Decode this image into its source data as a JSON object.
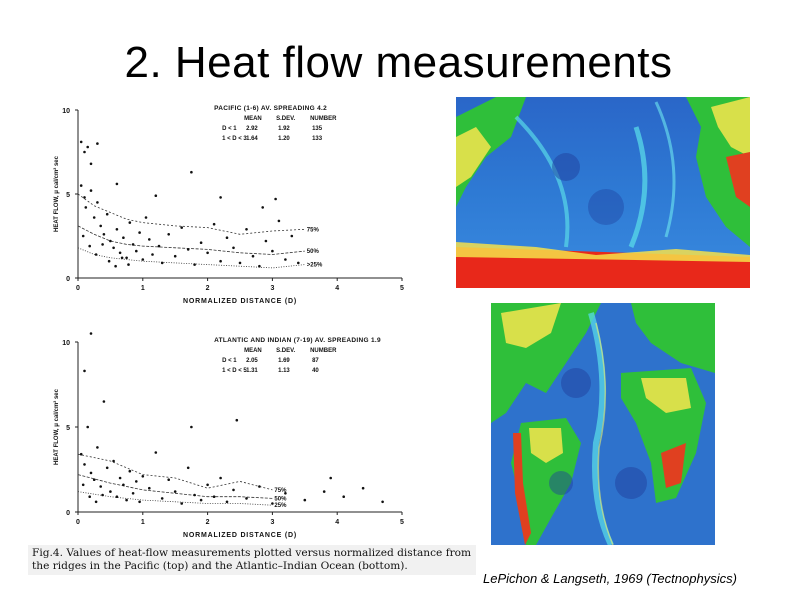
{
  "slide": {
    "title": "2. Heat flow measurements",
    "credit": "LePichon & Langseth, 1969 (Tectnophysics)",
    "caption": "Fig.4. Values of heat-flow measurements plotted versus normalized distance from the ridges in the Pacific (top) and the Atlantic–Indian Ocean (bottom)."
  },
  "colors": {
    "ocean_deep": "#1f3f9e",
    "ocean_mid": "#2f7fd0",
    "shelf": "#3ad7e8",
    "land_low": "#2fbf3a",
    "land_mid": "#d8e04a",
    "land_high": "#e04020",
    "ice": "#e8281a"
  },
  "icons": {
    "pacific_map": "bathymetry-map-pacific",
    "atlantic_map": "bathymetry-map-atlantic"
  },
  "chart_data": [
    {
      "type": "scatter",
      "title": "PACIFIC (1-6) AV. SPREADING 4.2",
      "xlabel": "NORMALIZED DISTANCE (D)",
      "ylabel": "HEAT FLOW, μ cal/cm² sec",
      "xlim": [
        0,
        5
      ],
      "ylim": [
        0,
        10
      ],
      "xticks": [
        "0",
        "1",
        "2",
        "3",
        "4",
        "5"
      ],
      "yticks": [
        "0",
        "5",
        "10"
      ],
      "stats": {
        "headers": [
          "MEAN",
          "S.DEV.",
          "NUMBER"
        ],
        "rows": [
          {
            "label": "D < 1",
            "values": [
              "2.92",
              "1.92",
              "135"
            ]
          },
          {
            "label": "1 < D < 3",
            "values": [
              "1.64",
              "1.20",
              "133"
            ]
          }
        ]
      },
      "curve_labels": [
        "75%",
        "50%",
        ">25%"
      ],
      "curves": [
        {
          "label": "75%",
          "x": [
            0,
            0.25,
            0.5,
            0.75,
            1,
            1.5,
            2,
            2.5,
            3,
            3.5
          ],
          "y": [
            5.0,
            4.3,
            3.9,
            3.5,
            3.3,
            3.1,
            3.0,
            2.6,
            2.8,
            2.9
          ]
        },
        {
          "label": "50%",
          "x": [
            0,
            0.25,
            0.5,
            0.75,
            1,
            1.5,
            2,
            2.5,
            3,
            3.5
          ],
          "y": [
            3.1,
            2.6,
            2.2,
            2.0,
            1.9,
            1.8,
            1.7,
            1.5,
            1.4,
            1.6
          ]
        },
        {
          "label": ">25%",
          "x": [
            0,
            0.25,
            0.5,
            0.75,
            1,
            1.5,
            2,
            2.5,
            3,
            3.5
          ],
          "y": [
            1.8,
            1.4,
            1.2,
            1.1,
            1.0,
            0.9,
            0.8,
            0.7,
            0.6,
            0.8
          ]
        }
      ],
      "points": [
        {
          "x": 0.05,
          "y": 8.1
        },
        {
          "x": 0.1,
          "y": 7.5
        },
        {
          "x": 0.15,
          "y": 7.8
        },
        {
          "x": 0.2,
          "y": 6.8
        },
        {
          "x": 0.3,
          "y": 8.0
        },
        {
          "x": 0.05,
          "y": 5.5
        },
        {
          "x": 0.1,
          "y": 4.8
        },
        {
          "x": 0.12,
          "y": 4.2
        },
        {
          "x": 0.2,
          "y": 5.2
        },
        {
          "x": 0.25,
          "y": 3.6
        },
        {
          "x": 0.3,
          "y": 4.5
        },
        {
          "x": 0.35,
          "y": 3.1
        },
        {
          "x": 0.4,
          "y": 2.6
        },
        {
          "x": 0.45,
          "y": 3.8
        },
        {
          "x": 0.5,
          "y": 2.2
        },
        {
          "x": 0.55,
          "y": 1.8
        },
        {
          "x": 0.6,
          "y": 2.9
        },
        {
          "x": 0.65,
          "y": 1.5
        },
        {
          "x": 0.7,
          "y": 2.4
        },
        {
          "x": 0.75,
          "y": 1.2
        },
        {
          "x": 0.8,
          "y": 3.3
        },
        {
          "x": 0.85,
          "y": 2.0
        },
        {
          "x": 0.9,
          "y": 1.6
        },
        {
          "x": 0.95,
          "y": 2.7
        },
        {
          "x": 1.0,
          "y": 1.1
        },
        {
          "x": 1.05,
          "y": 3.6
        },
        {
          "x": 1.1,
          "y": 2.3
        },
        {
          "x": 1.15,
          "y": 1.4
        },
        {
          "x": 1.2,
          "y": 4.9
        },
        {
          "x": 1.25,
          "y": 1.9
        },
        {
          "x": 1.3,
          "y": 0.9
        },
        {
          "x": 1.4,
          "y": 2.6
        },
        {
          "x": 1.5,
          "y": 1.3
        },
        {
          "x": 1.6,
          "y": 3.0
        },
        {
          "x": 1.7,
          "y": 1.7
        },
        {
          "x": 1.8,
          "y": 0.8
        },
        {
          "x": 1.9,
          "y": 2.1
        },
        {
          "x": 2.0,
          "y": 1.5
        },
        {
          "x": 2.1,
          "y": 3.2
        },
        {
          "x": 2.2,
          "y": 1.0
        },
        {
          "x": 2.3,
          "y": 2.4
        },
        {
          "x": 2.4,
          "y": 1.8
        },
        {
          "x": 2.5,
          "y": 0.9
        },
        {
          "x": 2.6,
          "y": 2.9
        },
        {
          "x": 2.7,
          "y": 1.3
        },
        {
          "x": 2.8,
          "y": 0.7
        },
        {
          "x": 2.9,
          "y": 2.2
        },
        {
          "x": 3.0,
          "y": 1.6
        },
        {
          "x": 3.1,
          "y": 3.4
        },
        {
          "x": 3.2,
          "y": 1.1
        },
        {
          "x": 3.3,
          "y": 2.5
        },
        {
          "x": 3.4,
          "y": 0.9
        },
        {
          "x": 0.08,
          "y": 2.5
        },
        {
          "x": 0.18,
          "y": 1.9
        },
        {
          "x": 0.28,
          "y": 1.4
        },
        {
          "x": 0.38,
          "y": 2.0
        },
        {
          "x": 0.48,
          "y": 1.0
        },
        {
          "x": 0.58,
          "y": 0.7
        },
        {
          "x": 0.68,
          "y": 1.2
        },
        {
          "x": 0.78,
          "y": 0.8
        },
        {
          "x": 1.75,
          "y": 6.3
        },
        {
          "x": 2.2,
          "y": 4.8
        },
        {
          "x": 2.85,
          "y": 4.2
        },
        {
          "x": 3.05,
          "y": 4.7
        },
        {
          "x": 0.6,
          "y": 5.6
        }
      ]
    },
    {
      "type": "scatter",
      "title": "ATLANTIC AND INDIAN (7-19) AV. SPREADING 1.9",
      "xlabel": "NORMALIZED DISTANCE (D)",
      "ylabel": "HEAT FLOW, μ cal/cm² sec",
      "xlim": [
        0,
        5
      ],
      "ylim": [
        0,
        10
      ],
      "xticks": [
        "0",
        "1",
        "2",
        "3",
        "4",
        "5"
      ],
      "yticks": [
        "0",
        "5",
        "10"
      ],
      "stats": {
        "headers": [
          "MEAN",
          "S.DEV.",
          "NUMBER"
        ],
        "rows": [
          {
            "label": "D < 1",
            "values": [
              "2.05",
              "1.69",
              "87"
            ]
          },
          {
            "label": "1 < D < 5",
            "values": [
              "1.31",
              "1.13",
              "40"
            ]
          }
        ]
      },
      "curve_labels": [
        "75%",
        "50%",
        "25%"
      ],
      "curves": [
        {
          "label": "75%",
          "x": [
            0,
            0.5,
            1,
            1.5,
            2,
            2.5,
            3
          ],
          "y": [
            3.4,
            3.0,
            2.2,
            2.0,
            1.4,
            1.8,
            1.3
          ]
        },
        {
          "label": "50%",
          "x": [
            0,
            0.5,
            1,
            1.5,
            2,
            2.5,
            3
          ],
          "y": [
            2.2,
            1.7,
            1.3,
            1.1,
            0.9,
            0.9,
            0.8
          ]
        },
        {
          "label": "25%",
          "x": [
            0,
            0.5,
            1,
            1.5,
            2,
            2.5,
            3
          ],
          "y": [
            1.2,
            0.9,
            0.7,
            0.6,
            0.5,
            0.5,
            0.4
          ]
        }
      ],
      "points": [
        {
          "x": 0.2,
          "y": 10.5
        },
        {
          "x": 0.1,
          "y": 8.3
        },
        {
          "x": 0.4,
          "y": 6.5
        },
        {
          "x": 0.15,
          "y": 5.0
        },
        {
          "x": 0.3,
          "y": 3.8
        },
        {
          "x": 0.05,
          "y": 3.4
        },
        {
          "x": 0.1,
          "y": 2.8
        },
        {
          "x": 0.2,
          "y": 2.3
        },
        {
          "x": 0.25,
          "y": 1.9
        },
        {
          "x": 0.35,
          "y": 1.5
        },
        {
          "x": 0.45,
          "y": 2.6
        },
        {
          "x": 0.5,
          "y": 1.2
        },
        {
          "x": 0.55,
          "y": 3.0
        },
        {
          "x": 0.6,
          "y": 0.9
        },
        {
          "x": 0.65,
          "y": 2.0
        },
        {
          "x": 0.7,
          "y": 1.6
        },
        {
          "x": 0.75,
          "y": 0.7
        },
        {
          "x": 0.8,
          "y": 2.4
        },
        {
          "x": 0.85,
          "y": 1.1
        },
        {
          "x": 0.9,
          "y": 1.8
        },
        {
          "x": 0.95,
          "y": 0.6
        },
        {
          "x": 1.0,
          "y": 2.1
        },
        {
          "x": 1.1,
          "y": 1.4
        },
        {
          "x": 1.2,
          "y": 3.5
        },
        {
          "x": 1.3,
          "y": 0.8
        },
        {
          "x": 1.4,
          "y": 1.9
        },
        {
          "x": 1.5,
          "y": 1.2
        },
        {
          "x": 1.6,
          "y": 0.5
        },
        {
          "x": 1.7,
          "y": 2.6
        },
        {
          "x": 1.8,
          "y": 1.0
        },
        {
          "x": 1.9,
          "y": 0.7
        },
        {
          "x": 2.0,
          "y": 1.6
        },
        {
          "x": 2.1,
          "y": 0.9
        },
        {
          "x": 2.2,
          "y": 2.0
        },
        {
          "x": 2.3,
          "y": 0.6
        },
        {
          "x": 2.4,
          "y": 1.3
        },
        {
          "x": 2.6,
          "y": 0.8
        },
        {
          "x": 2.8,
          "y": 1.5
        },
        {
          "x": 3.0,
          "y": 0.5
        },
        {
          "x": 3.2,
          "y": 1.1
        },
        {
          "x": 3.5,
          "y": 0.7
        },
        {
          "x": 3.8,
          "y": 1.2
        },
        {
          "x": 4.1,
          "y": 0.9
        },
        {
          "x": 4.4,
          "y": 1.4
        },
        {
          "x": 4.7,
          "y": 0.6
        },
        {
          "x": 0.08,
          "y": 1.6
        },
        {
          "x": 0.18,
          "y": 0.9
        },
        {
          "x": 0.28,
          "y": 0.6
        },
        {
          "x": 0.38,
          "y": 1.0
        },
        {
          "x": 1.75,
          "y": 5.0
        },
        {
          "x": 2.45,
          "y": 5.4
        },
        {
          "x": 3.9,
          "y": 2.0
        }
      ]
    }
  ]
}
